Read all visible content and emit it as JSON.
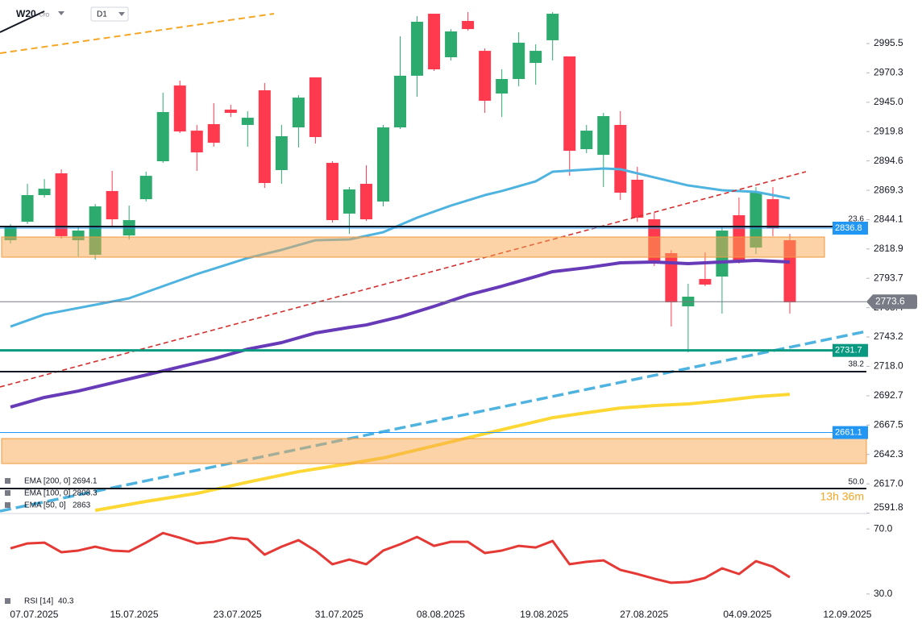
{
  "ui": {
    "symbol": "W20",
    "symbol_type": "CFD",
    "interval": "D1",
    "timer": "13h 36m",
    "fib_labels": [
      "23.6",
      "38.2",
      "50.0"
    ]
  },
  "chart_data": {
    "type": "candlestick",
    "up_color": "#2dab6f",
    "down_color": "#ff3a4f",
    "open": [
      2826.4,
      2842.3,
      2865.2,
      2883.9,
      2826.4,
      2813.9,
      2868.7,
      2830.5,
      2861.7,
      2894.3,
      2959.4,
      2920.6,
      2926.2,
      2938.7,
      2925.5,
      2955.3,
      2886.7,
      2923.4,
      2966.4,
      2892.9,
      2849.3,
      2874.9,
      2859.7,
      2923.4,
      2967.8,
      3021.1,
      2983.7,
      3014.9,
      2989.2,
      2952.5,
      2965.0,
      2978.8,
      2998.3,
      2984.4,
      2904.7,
      2899.8,
      2925.5,
      2878.4,
      2844.4,
      2815.3,
      2769.6,
      2793.1,
      2795.2,
      2847.9,
      2820.1,
      2861.7,
      2826.4
    ],
    "high": [
      2840.3,
      2874.9,
      2879.0,
      2887.4,
      2838.9,
      2857.6,
      2886.0,
      2856.2,
      2885.3,
      2953.2,
      2963.6,
      2925.5,
      2944.2,
      2942.8,
      2937.3,
      2961.5,
      2925.5,
      2951.1,
      2966.4,
      2894.3,
      2872.1,
      2890.8,
      2925.5,
      3001.7,
      3019.0,
      3021.1,
      3007.9,
      3022.5,
      2991.3,
      2973.3,
      3005.2,
      2994.8,
      3022.5,
      2984.4,
      2925.5,
      2935.9,
      2937.3,
      2889.5,
      2849.9,
      2818.0,
      2789.0,
      2816.0,
      2838.9,
      2863.1,
      2872.1,
      2872.1,
      2831.9
    ],
    "low": [
      2823.6,
      2840.3,
      2863.1,
      2827.8,
      2812.5,
      2809.7,
      2838.9,
      2827.1,
      2859.7,
      2892.9,
      2918.6,
      2886.0,
      2906.8,
      2932.4,
      2906.8,
      2871.4,
      2874.9,
      2906.1,
      2909.5,
      2841.6,
      2831.9,
      2843.0,
      2855.5,
      2922.0,
      2949.7,
      2971.9,
      2980.9,
      3006.6,
      2935.9,
      2932.4,
      2958.7,
      2960.1,
      2980.9,
      2881.8,
      2901.2,
      2872.1,
      2861.0,
      2842.3,
      2804.2,
      2752.3,
      2730.1,
      2786.9,
      2763.3,
      2806.3,
      2814.6,
      2829.9,
      2763.3
    ],
    "close": [
      2837.5,
      2865.2,
      2870.7,
      2829.9,
      2834.7,
      2855.5,
      2844.4,
      2843.7,
      2881.8,
      2936.6,
      2919.9,
      2901.9,
      2910.2,
      2935.9,
      2931.7,
      2875.6,
      2915.8,
      2949.0,
      2915.1,
      2843.7,
      2870.1,
      2844.4,
      2923.4,
      2967.8,
      3014.2,
      2973.3,
      3005.9,
      3007.9,
      2946.3,
      2965.0,
      2996.2,
      2989.2,
      3021.1,
      2903.3,
      2920.6,
      2933.1,
      2867.3,
      2845.8,
      2807.7,
      2773.0,
      2777.9,
      2788.3,
      2834.7,
      2807.7,
      2868.0,
      2836.8,
      2773.0
    ],
    "xlim": [
      -0.62,
      50.52
    ],
    "xticks": [
      {
        "value": 1.4,
        "label": "07.07.2025"
      },
      {
        "value": 7.3,
        "label": "15.07.2025"
      },
      {
        "value": 13.4,
        "label": "23.07.2025"
      },
      {
        "value": 19.4,
        "label": "31.07.2025"
      },
      {
        "value": 25.4,
        "label": "08.08.2025"
      },
      {
        "value": 31.5,
        "label": "19.08.2025"
      },
      {
        "value": 37.4,
        "label": "27.08.2025"
      },
      {
        "value": 43.5,
        "label": "04.09.2025"
      },
      {
        "value": 49.4,
        "label": "12.09.2025"
      }
    ],
    "ylim": [
      2591.5,
      3032.9
    ],
    "yticks": [
      2995.5,
      2970.3,
      {
        "value": 2945.0,
        "label": "2945.0"
      },
      2919.8,
      2894.6,
      2869.3,
      2844.1,
      2818.9,
      2793.7,
      2768.4,
      2743.2,
      {
        "value": 2718.0,
        "label": "2718.0"
      },
      2692.7,
      2667.5,
      2642.3,
      {
        "value": 2617.0,
        "label": "2617.0"
      },
      2591.8
    ],
    "series": [
      {
        "name": "EMA [200, 0]",
        "last": 2694.1,
        "color": "#fdd835",
        "width": 4,
        "x": [
          5,
          8,
          11,
          14,
          17,
          20,
          22,
          24,
          26,
          28,
          30,
          32,
          34,
          36,
          38,
          40,
          42,
          44,
          46
        ],
        "values": [
          2594.2,
          2601.9,
          2608.8,
          2618.5,
          2627.5,
          2634.4,
          2639.3,
          2646.2,
          2653.1,
          2660.1,
          2667.0,
          2673.9,
          2678.1,
          2682.2,
          2684.3,
          2685.7,
          2688.5,
          2691.9,
          2694.0
        ]
      },
      {
        "name": "EMA [100, 0]",
        "last": 2808.3,
        "color": "#673ab7",
        "width": 4,
        "x": [
          0,
          2,
          4,
          6,
          8,
          10,
          12,
          14,
          16,
          18,
          20,
          21,
          23,
          25,
          27,
          29,
          31,
          32,
          34,
          36,
          38,
          40,
          42,
          44,
          46
        ],
        "values": [
          2683.0,
          2691.3,
          2696.8,
          2703.7,
          2710.6,
          2717.6,
          2724.5,
          2732.8,
          2738.4,
          2746.7,
          2751.5,
          2753.6,
          2760.6,
          2769.6,
          2779.3,
          2786.9,
          2795.2,
          2799.4,
          2802.8,
          2807.0,
          2807.7,
          2806.3,
          2807.7,
          2809.1,
          2807.7
        ]
      },
      {
        "name": "EMA [50, 0]",
        "last": 2863.0,
        "color": "#4fb3e0",
        "width": 3,
        "x": [
          0,
          2,
          7,
          9,
          11,
          14,
          16,
          18,
          20,
          22,
          24,
          26,
          28,
          29,
          31,
          32,
          35,
          36,
          38,
          40,
          42,
          44,
          46
        ],
        "values": [
          2752.2,
          2762.6,
          2776.5,
          2786.9,
          2797.3,
          2811.1,
          2818.1,
          2826.4,
          2827.1,
          2833.3,
          2845.8,
          2856.2,
          2865.2,
          2868.7,
          2877.0,
          2885.3,
          2888.1,
          2887.4,
          2880.4,
          2873.5,
          2869.4,
          2868.0,
          2862.4
        ]
      }
    ],
    "price_lines": [
      {
        "value": 2836.8,
        "color": "#2196f3",
        "width": 1
      },
      {
        "value": 2773.6,
        "color": "#787b86",
        "width": 1,
        "current": true
      },
      {
        "value": 2731.7,
        "color": "#089981",
        "width": 3
      },
      {
        "value": 2661.1,
        "color": "#2196f3",
        "width": 1
      }
    ],
    "rsi": {
      "name": "RSI [14]",
      "last": 40.3,
      "color": "#e53935",
      "values": [
        58.1,
        61.1,
        61.6,
        55.7,
        56.7,
        59.1,
        56.7,
        56.2,
        61.6,
        67.5,
        64.6,
        61.1,
        62.1,
        64.6,
        63.6,
        54.2,
        59.1,
        63.1,
        56.7,
        48.3,
        51.2,
        48.3,
        56.7,
        60.6,
        65.1,
        59.6,
        62.1,
        62.1,
        55.2,
        56.7,
        59.6,
        58.6,
        62.6,
        48.3,
        49.8,
        50.7,
        44.8,
        42.3,
        39.4,
        36.9,
        37.4,
        39.9,
        45.8,
        42.3,
        50.2,
        46.8,
        40.3
      ],
      "ylim": [
        20,
        78
      ],
      "yticks": [
        {
          "value": 70,
          "label": "70.0"
        },
        {
          "value": 30,
          "label": "30.0"
        }
      ]
    }
  }
}
